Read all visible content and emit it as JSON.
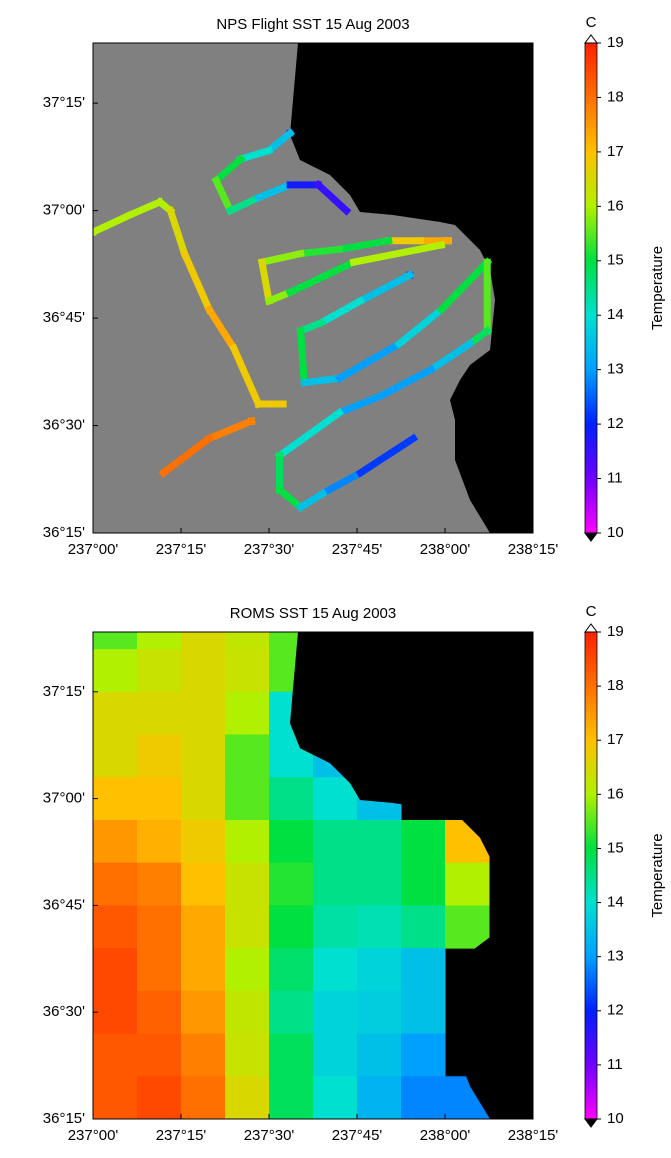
{
  "chart_data": [
    {
      "type": "track",
      "title": "NPS Flight SST  15 Aug 2003",
      "background": "#808080",
      "xlim": [
        237,
        238.25
      ],
      "ylim": [
        36.25,
        37.39
      ],
      "xticks": [
        {
          "value": 237,
          "label": "237°00'"
        },
        {
          "value": 237.25,
          "label": "237°15'"
        },
        {
          "value": 237.5,
          "label": "237°30'"
        },
        {
          "value": 237.75,
          "label": "237°45'"
        },
        {
          "value": 238,
          "label": "238°00'"
        },
        {
          "value": 238.25,
          "label": "238°15'"
        }
      ],
      "yticks": [
        {
          "value": 36.25,
          "label": "36°15'"
        },
        {
          "value": 36.5,
          "label": "36°30'"
        },
        {
          "value": 36.75,
          "label": "36°45'"
        },
        {
          "value": 37,
          "label": "37°00'"
        },
        {
          "value": 37.25,
          "label": "37°15'"
        }
      ],
      "colorbar": {
        "label": "Temperature",
        "unit": "C",
        "lim": [
          10,
          19
        ],
        "ticks": [
          10,
          11,
          12,
          13,
          14,
          15,
          16,
          17,
          18,
          19
        ],
        "colors": [
          "#ff00ff",
          "#7000ff",
          "#0020ff",
          "#00a0ff",
          "#00e0d0",
          "#00e040",
          "#b0f000",
          "#ffc000",
          "#ff7000",
          "#ff2000"
        ]
      },
      "lon": [
        237.0,
        237.105,
        237.19,
        237.22,
        237.26,
        237.33,
        237.4,
        237.47,
        237.54,
        null,
        237.45,
        237.33,
        237.2,
        null,
        237.56,
        237.5,
        237.42,
        237.35,
        237.39,
        237.47,
        237.56,
        237.64,
        237.72,
        null,
        238.01,
        237.93,
        237.84,
        237.7,
        237.59,
        237.48,
        237.5,
        237.56,
        237.74,
        237.99,
        null,
        237.9,
        237.76,
        237.65,
        237.59,
        237.6,
        237.7,
        237.87,
        237.99,
        238.12,
        238.12,
        238.07,
        237.96,
        237.82,
        237.7,
        237.53,
        237.53,
        237.59,
        237.67,
        237.76,
        237.91
      ],
      "lat": [
        36.95,
        36.99,
        37.02,
        37.0,
        36.9,
        36.77,
        36.68,
        36.55,
        36.55,
        null,
        36.51,
        36.47,
        36.39,
        null,
        37.18,
        37.14,
        37.12,
        37.07,
        37.0,
        37.03,
        37.06,
        37.06,
        37.0,
        null,
        36.93,
        36.93,
        36.93,
        36.91,
        36.9,
        36.88,
        36.79,
        36.81,
        36.88,
        36.92,
        null,
        36.85,
        36.79,
        36.74,
        36.72,
        36.6,
        36.61,
        36.69,
        36.77,
        36.88,
        36.72,
        36.69,
        36.63,
        36.57,
        36.53,
        36.43,
        36.35,
        36.31,
        36.35,
        36.39,
        36.47
      ],
      "values": [
        16,
        16,
        16,
        16,
        16.5,
        16.8,
        17.3,
        16.8,
        16.8,
        null,
        17.5,
        17.8,
        18,
        null,
        11.5,
        13.5,
        14,
        15,
        15.5,
        14.5,
        13.5,
        11.8,
        11.5,
        null,
        16.5,
        17.3,
        16.8,
        15,
        15.2,
        15.8,
        16.5,
        15.8,
        15,
        16,
        null,
        12.2,
        13.5,
        14,
        14.5,
        15,
        13.5,
        13,
        13.8,
        15,
        15.5,
        14.8,
        13.5,
        13,
        13,
        14,
        14.8,
        15,
        13.5,
        12.8,
        12.2
      ]
    },
    {
      "type": "grid",
      "title": "ROMS SST  15 Aug 2003",
      "background": "#000000",
      "xlim": [
        237,
        238.25
      ],
      "ylim": [
        36.25,
        37.39
      ],
      "xticks": [
        {
          "value": 237,
          "label": "237°00'"
        },
        {
          "value": 237.25,
          "label": "237°15'"
        },
        {
          "value": 237.5,
          "label": "237°30'"
        },
        {
          "value": 237.75,
          "label": "237°45'"
        },
        {
          "value": 238,
          "label": "238°00'"
        },
        {
          "value": 238.25,
          "label": "238°15'"
        }
      ],
      "yticks": [
        {
          "value": 36.25,
          "label": "36°15'"
        },
        {
          "value": 36.5,
          "label": "36°30'"
        },
        {
          "value": 36.75,
          "label": "36°45'"
        },
        {
          "value": 37,
          "label": "37°00'"
        },
        {
          "value": 37.25,
          "label": "37°15'"
        }
      ],
      "colorbar": {
        "label": "Temperature",
        "unit": "C",
        "lim": [
          10,
          19
        ],
        "ticks": [
          10,
          11,
          12,
          13,
          14,
          15,
          16,
          17,
          18,
          19
        ],
        "colors": [
          "#ff00ff",
          "#7000ff",
          "#0020ff",
          "#00a0ff",
          "#00e0d0",
          "#00e040",
          "#b0f000",
          "#ffc000",
          "#ff7000",
          "#ff2000"
        ]
      },
      "lon": [
        237.0625,
        237.1875,
        237.3125,
        237.4375,
        237.5625,
        237.6875,
        237.8125,
        237.9375,
        238.0625,
        238.1875
      ],
      "lat": [
        37.4,
        37.3,
        37.2,
        37.1,
        37.0,
        36.9,
        36.8,
        36.7,
        36.6,
        36.5,
        36.4,
        36.3
      ],
      "values": [
        [
          15.5,
          16,
          16.5,
          16.2,
          15.5,
          null,
          null,
          null,
          null,
          null
        ],
        [
          16,
          16.3,
          16.5,
          16.3,
          15.5,
          null,
          null,
          null,
          null,
          null
        ],
        [
          16.5,
          16.5,
          16.5,
          16,
          14,
          null,
          null,
          null,
          null,
          null
        ],
        [
          16.5,
          16.8,
          16.5,
          15.5,
          14,
          13.5,
          null,
          null,
          null,
          null
        ],
        [
          17,
          17,
          16.5,
          15.5,
          14.5,
          14,
          13.5,
          null,
          null,
          null
        ],
        [
          17.5,
          17.2,
          16.8,
          16,
          15,
          14.5,
          14.5,
          15,
          17,
          null
        ],
        [
          18,
          17.8,
          17,
          16.3,
          15.2,
          14.5,
          14.5,
          15,
          16,
          null
        ],
        [
          18.3,
          18,
          17.3,
          16.3,
          15,
          14.3,
          14.2,
          14.5,
          15.5,
          null
        ],
        [
          18.5,
          18,
          17.3,
          16,
          14.7,
          14,
          13.8,
          13.5,
          null,
          null
        ],
        [
          18.5,
          18.2,
          17.5,
          16.2,
          14.5,
          13.8,
          13.7,
          13.5,
          null,
          null
        ],
        [
          18.3,
          18.3,
          17.8,
          16.3,
          14.8,
          13.8,
          13.5,
          13,
          null,
          null
        ],
        [
          18.3,
          18.5,
          18,
          16.5,
          14.8,
          14,
          13.3,
          12.8,
          12.8,
          null
        ]
      ]
    }
  ]
}
